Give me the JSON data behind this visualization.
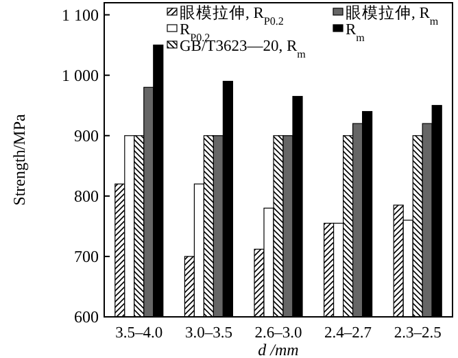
{
  "chart_data": {
    "type": "bar",
    "xlabel": "d /mm",
    "ylabel": "Strength/MPa",
    "categories": [
      "3.5–4.0",
      "3.0–3.5",
      "2.6–3.0",
      "2.4–2.7",
      "2.3–2.5"
    ],
    "series": [
      {
        "name": "眼模拉伸, R$_{P0.2}$",
        "color": "#000000",
        "values": [
          820,
          700,
          712,
          755,
          785
        ]
      },
      {
        "name": "R$_{P0.2}$",
        "color": "#ffffff",
        "values": [
          900,
          820,
          780,
          755,
          760
        ]
      },
      {
        "name": "GB/T3623—20, R$_{m}$",
        "color": "#000000",
        "values": [
          900,
          900,
          900,
          900,
          900
        ]
      },
      {
        "name": "眼模拉伸, R$_{m}$",
        "color": "#666666",
        "values": [
          980,
          900,
          900,
          920,
          920
        ]
      },
      {
        "name": "R$_{m}$",
        "color": "#000000",
        "values": [
          1050,
          990,
          965,
          940,
          950
        ]
      }
    ],
    "ylim": [
      600,
      1120
    ],
    "yticks": [
      600,
      700,
      800,
      900,
      {
        "value": 1000,
        "label": "1 000"
      },
      {
        "value": 1100,
        "label": "1 100"
      }
    ],
    "grid": false,
    "legend": "top"
  }
}
